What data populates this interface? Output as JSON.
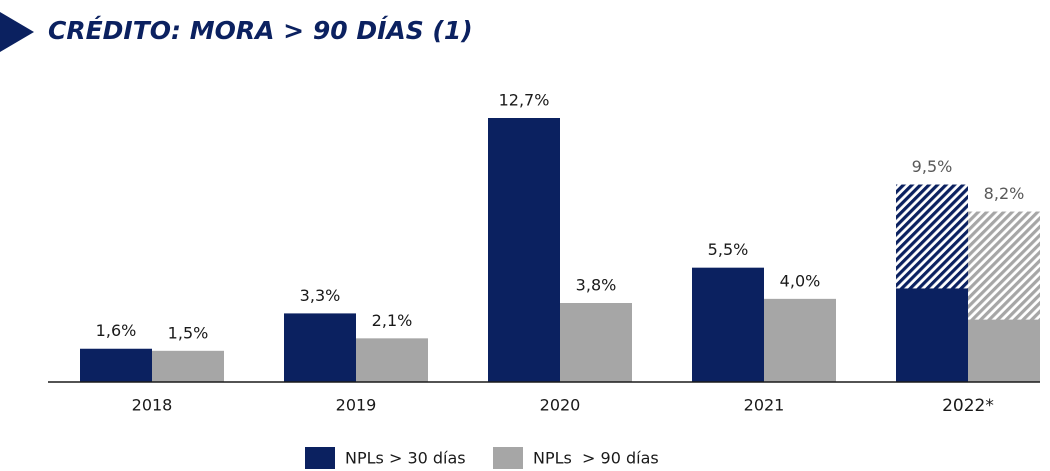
{
  "chart_data": {
    "type": "bar",
    "title": "CRÉDITO: MORA > 90 DÍAS (1)",
    "categories": [
      "2018",
      "2019",
      "2020",
      "2021",
      "2022*"
    ],
    "series": [
      {
        "name": "NPLs > 30 días",
        "color": "#0b2160",
        "values": [
          1.6,
          3.3,
          12.7,
          5.5,
          9.5
        ],
        "value_labels": [
          "1,6%",
          "3,3%",
          "12,7%",
          "5,5%",
          "9,5%"
        ],
        "solid_values": [
          null,
          null,
          null,
          null,
          4.5
        ]
      },
      {
        "name": "NPLs  > 90 días",
        "color": "#a6a6a6",
        "values": [
          1.5,
          2.1,
          3.8,
          4.0,
          8.2
        ],
        "value_labels": [
          "1,5%",
          "2,1%",
          "3,8%",
          "4,0%",
          "8,2%"
        ],
        "solid_values": [
          null,
          null,
          null,
          null,
          3.0
        ]
      }
    ],
    "legend": "bottom"
  }
}
